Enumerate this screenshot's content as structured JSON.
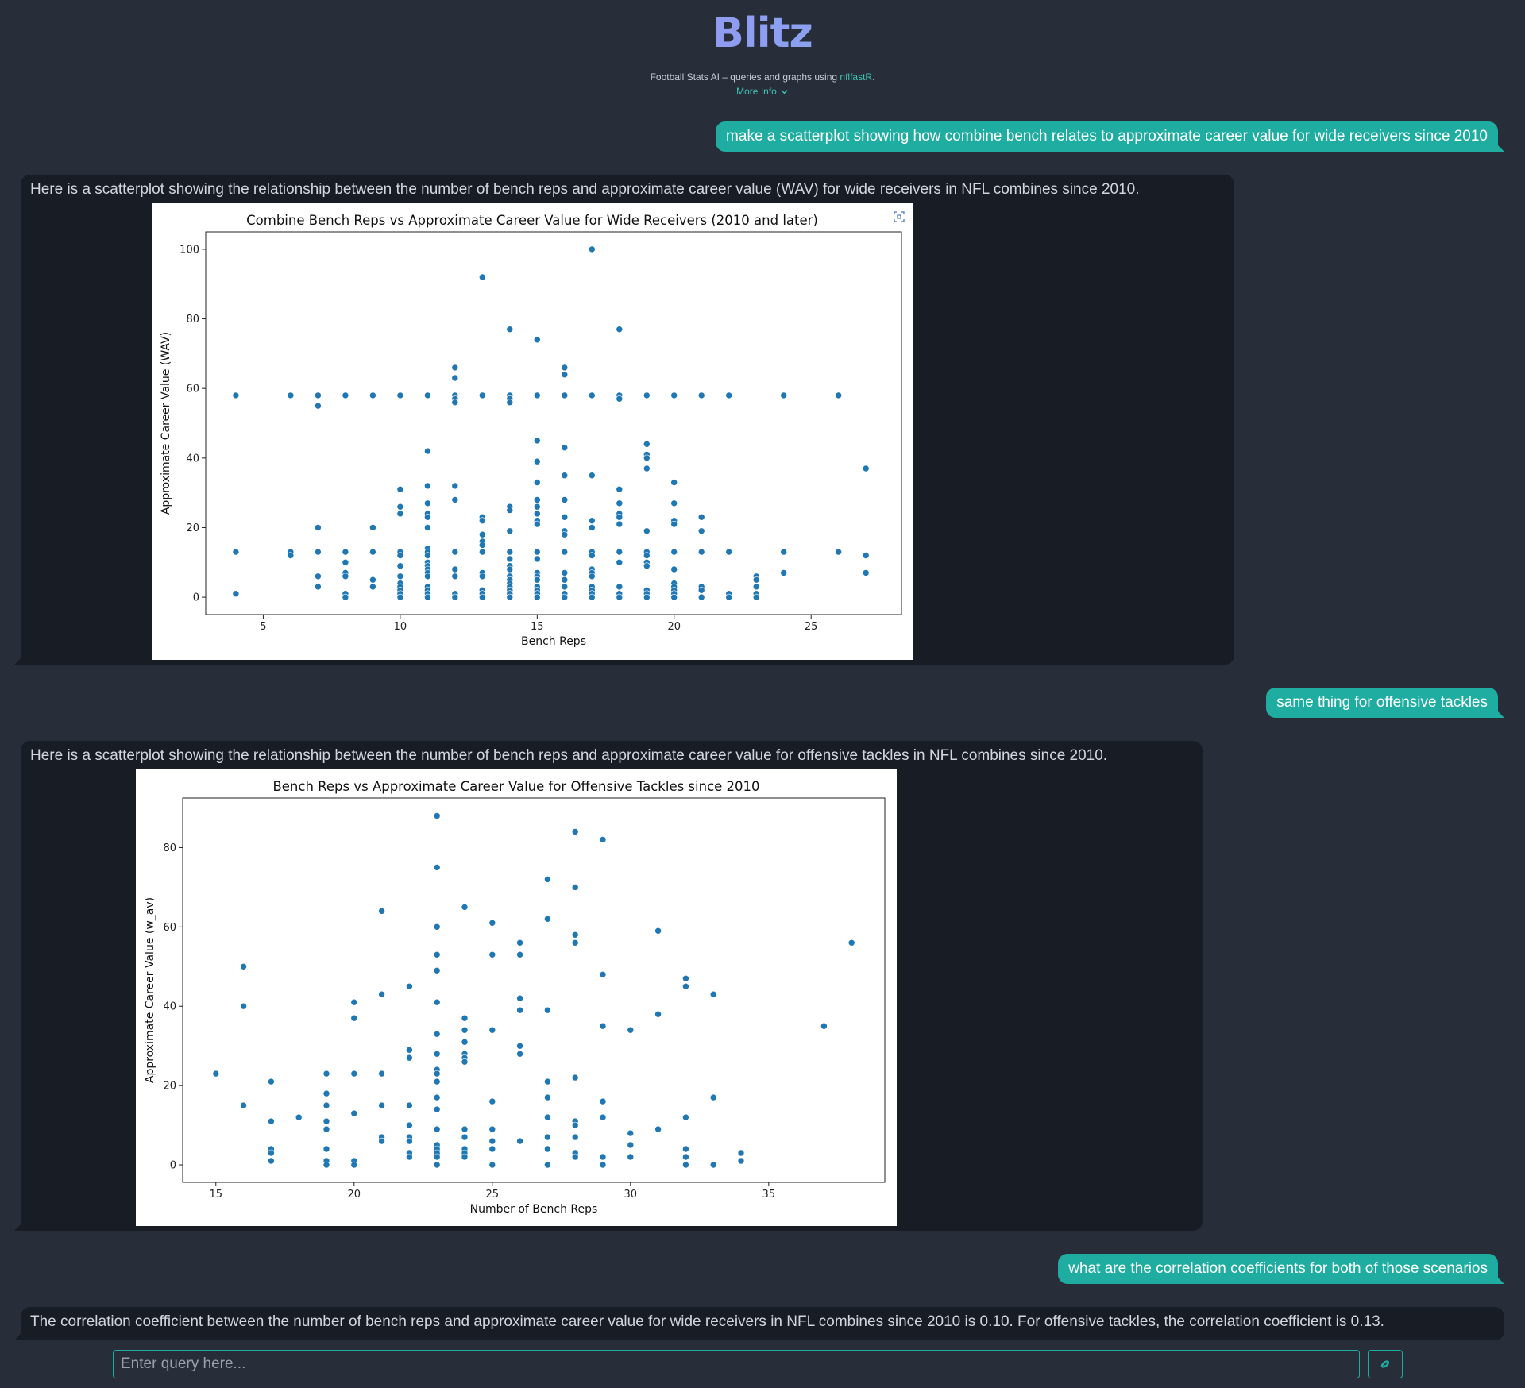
{
  "header": {
    "logo": "Blitz",
    "tagline_prefix": "Football Stats AI – queries and graphs using ",
    "tagline_link": "nflfastR",
    "tagline_suffix": ".",
    "more_info": "More Info"
  },
  "messages": {
    "q1": "make a scatterplot showing how combine bench relates to approximate career value for wide receivers since 2010",
    "a1": "Here is a scatterplot showing the relationship between the number of bench reps and approximate career value (WAV) for wide receivers in NFL combines since 2010.",
    "q2": "same thing for offensive tackles",
    "a2": "Here is a scatterplot showing the relationship between the number of bench reps and approximate career value for offensive tackles in NFL combines since 2010.",
    "q3": "what are the correlation coefficients for both of those scenarios",
    "a3": "The correlation coefficient between the number of bench reps and approximate career value for wide receivers in NFL combines since 2010 is 0.10. For offensive tackles, the correlation coefficient is 0.13."
  },
  "input": {
    "placeholder": "Enter query here..."
  },
  "colors": {
    "accent": "#1eada0",
    "marker": "#1f77b4",
    "background": "#282d3a",
    "ai_bubble": "#181c24"
  },
  "icons": {
    "expand": "expand-icon",
    "send": "football-icon",
    "chevron": "chevron-down-icon"
  },
  "chart_data": [
    {
      "type": "scatter",
      "title": "Combine Bench Reps vs Approximate Career Value for Wide Receivers (2010 and later)",
      "xlabel": "Bench Reps",
      "ylabel": "Approximate Career Value (WAV)",
      "xlim": [
        2.9,
        28.3
      ],
      "ylim": [
        -5,
        105
      ],
      "xticks": [
        5,
        10,
        15,
        20,
        25
      ],
      "yticks": [
        0,
        20,
        40,
        60,
        80,
        100
      ],
      "points": [
        [
          4,
          58
        ],
        [
          4,
          13
        ],
        [
          4,
          1
        ],
        [
          6,
          58
        ],
        [
          6,
          13
        ],
        [
          6,
          12
        ],
        [
          7,
          58
        ],
        [
          7,
          55
        ],
        [
          7,
          20
        ],
        [
          7,
          13
        ],
        [
          7,
          6
        ],
        [
          7,
          3
        ],
        [
          8,
          58
        ],
        [
          8,
          13
        ],
        [
          8,
          10
        ],
        [
          8,
          7
        ],
        [
          8,
          6
        ],
        [
          8,
          1
        ],
        [
          8,
          0
        ],
        [
          9,
          58
        ],
        [
          9,
          20
        ],
        [
          9,
          13
        ],
        [
          9,
          5
        ],
        [
          9,
          3
        ],
        [
          10,
          58
        ],
        [
          10,
          31
        ],
        [
          10,
          26
        ],
        [
          10,
          24
        ],
        [
          10,
          13
        ],
        [
          10,
          12
        ],
        [
          10,
          9
        ],
        [
          10,
          6
        ],
        [
          10,
          4
        ],
        [
          10,
          3
        ],
        [
          10,
          2
        ],
        [
          10,
          1
        ],
        [
          10,
          0
        ],
        [
          11,
          58
        ],
        [
          11,
          42
        ],
        [
          11,
          32
        ],
        [
          11,
          27
        ],
        [
          11,
          24
        ],
        [
          11,
          23
        ],
        [
          11,
          20
        ],
        [
          11,
          14
        ],
        [
          11,
          13
        ],
        [
          11,
          12
        ],
        [
          11,
          10
        ],
        [
          11,
          9
        ],
        [
          11,
          8
        ],
        [
          11,
          7
        ],
        [
          11,
          6
        ],
        [
          11,
          3
        ],
        [
          11,
          2
        ],
        [
          11,
          1
        ],
        [
          11,
          0
        ],
        [
          12,
          66
        ],
        [
          12,
          63
        ],
        [
          12,
          58
        ],
        [
          12,
          57
        ],
        [
          12,
          56
        ],
        [
          12,
          32
        ],
        [
          12,
          28
        ],
        [
          12,
          13
        ],
        [
          12,
          8
        ],
        [
          12,
          6
        ],
        [
          12,
          1
        ],
        [
          12,
          0
        ],
        [
          13,
          92
        ],
        [
          13,
          58
        ],
        [
          13,
          23
        ],
        [
          13,
          22
        ],
        [
          13,
          18
        ],
        [
          13,
          16
        ],
        [
          13,
          15
        ],
        [
          13,
          13
        ],
        [
          13,
          7
        ],
        [
          13,
          6
        ],
        [
          13,
          2
        ],
        [
          13,
          1
        ],
        [
          13,
          0
        ],
        [
          14,
          77
        ],
        [
          14,
          58
        ],
        [
          14,
          57
        ],
        [
          14,
          56
        ],
        [
          14,
          26
        ],
        [
          14,
          25
        ],
        [
          14,
          19
        ],
        [
          14,
          13
        ],
        [
          14,
          11
        ],
        [
          14,
          9
        ],
        [
          14,
          8
        ],
        [
          14,
          6
        ],
        [
          14,
          5
        ],
        [
          14,
          4
        ],
        [
          14,
          3
        ],
        [
          14,
          2
        ],
        [
          14,
          1
        ],
        [
          14,
          0
        ],
        [
          15,
          74
        ],
        [
          15,
          58
        ],
        [
          15,
          45
        ],
        [
          15,
          39
        ],
        [
          15,
          33
        ],
        [
          15,
          28
        ],
        [
          15,
          26
        ],
        [
          15,
          24
        ],
        [
          15,
          22
        ],
        [
          15,
          21
        ],
        [
          15,
          13
        ],
        [
          15,
          11
        ],
        [
          15,
          7
        ],
        [
          15,
          6
        ],
        [
          15,
          5
        ],
        [
          15,
          3
        ],
        [
          15,
          2
        ],
        [
          15,
          1
        ],
        [
          15,
          0
        ],
        [
          16,
          66
        ],
        [
          16,
          64
        ],
        [
          16,
          58
        ],
        [
          16,
          43
        ],
        [
          16,
          35
        ],
        [
          16,
          28
        ],
        [
          16,
          23
        ],
        [
          16,
          19
        ],
        [
          16,
          18
        ],
        [
          16,
          13
        ],
        [
          16,
          7
        ],
        [
          16,
          5
        ],
        [
          16,
          3
        ],
        [
          16,
          1
        ],
        [
          16,
          0
        ],
        [
          17,
          100
        ],
        [
          17,
          58
        ],
        [
          17,
          35
        ],
        [
          17,
          22
        ],
        [
          17,
          20
        ],
        [
          17,
          13
        ],
        [
          17,
          12
        ],
        [
          17,
          8
        ],
        [
          17,
          7
        ],
        [
          17,
          6
        ],
        [
          17,
          3
        ],
        [
          17,
          2
        ],
        [
          17,
          1
        ],
        [
          17,
          0
        ],
        [
          18,
          77
        ],
        [
          18,
          58
        ],
        [
          18,
          57
        ],
        [
          18,
          31
        ],
        [
          18,
          27
        ],
        [
          18,
          24
        ],
        [
          18,
          23
        ],
        [
          18,
          21
        ],
        [
          18,
          13
        ],
        [
          18,
          10
        ],
        [
          18,
          3
        ],
        [
          18,
          1
        ],
        [
          18,
          0
        ],
        [
          19,
          58
        ],
        [
          19,
          44
        ],
        [
          19,
          41
        ],
        [
          19,
          40
        ],
        [
          19,
          37
        ],
        [
          19,
          19
        ],
        [
          19,
          13
        ],
        [
          19,
          12
        ],
        [
          19,
          10
        ],
        [
          19,
          9
        ],
        [
          19,
          2
        ],
        [
          19,
          1
        ],
        [
          19,
          0
        ],
        [
          20,
          58
        ],
        [
          20,
          33
        ],
        [
          20,
          27
        ],
        [
          20,
          22
        ],
        [
          20,
          21
        ],
        [
          20,
          13
        ],
        [
          20,
          8
        ],
        [
          20,
          4
        ],
        [
          20,
          3
        ],
        [
          20,
          2
        ],
        [
          20,
          1
        ],
        [
          20,
          0
        ],
        [
          21,
          58
        ],
        [
          21,
          23
        ],
        [
          21,
          19
        ],
        [
          21,
          13
        ],
        [
          21,
          3
        ],
        [
          21,
          2
        ],
        [
          21,
          0
        ],
        [
          22,
          58
        ],
        [
          22,
          13
        ],
        [
          22,
          1
        ],
        [
          22,
          0
        ],
        [
          23,
          6
        ],
        [
          23,
          5
        ],
        [
          23,
          3
        ],
        [
          23,
          1
        ],
        [
          23,
          0
        ],
        [
          24,
          58
        ],
        [
          24,
          13
        ],
        [
          24,
          7
        ],
        [
          26,
          58
        ],
        [
          26,
          13
        ],
        [
          27,
          37
        ],
        [
          27,
          12
        ],
        [
          27,
          7
        ]
      ]
    },
    {
      "type": "scatter",
      "title": "Bench Reps vs Approximate Career Value for Offensive Tackles since 2010",
      "xlabel": "Number of Bench Reps",
      "ylabel": "Approximate Career Value (w_av)",
      "xlim": [
        13.8,
        39.2
      ],
      "ylim": [
        -4.4,
        92.5
      ],
      "xticks": [
        15,
        20,
        25,
        30,
        35
      ],
      "yticks": [
        0,
        20,
        40,
        60,
        80
      ],
      "points": [
        [
          15,
          23
        ],
        [
          16,
          50
        ],
        [
          16,
          40
        ],
        [
          16,
          15
        ],
        [
          17,
          21
        ],
        [
          17,
          11
        ],
        [
          17,
          4
        ],
        [
          17,
          3
        ],
        [
          17,
          1
        ],
        [
          18,
          12
        ],
        [
          19,
          23
        ],
        [
          19,
          18
        ],
        [
          19,
          15
        ],
        [
          19,
          11
        ],
        [
          19,
          9
        ],
        [
          19,
          4
        ],
        [
          19,
          1
        ],
        [
          19,
          0
        ],
        [
          20,
          41
        ],
        [
          20,
          37
        ],
        [
          20,
          23
        ],
        [
          20,
          13
        ],
        [
          20,
          1
        ],
        [
          20,
          0
        ],
        [
          21,
          64
        ],
        [
          21,
          43
        ],
        [
          21,
          23
        ],
        [
          21,
          15
        ],
        [
          21,
          7
        ],
        [
          21,
          6
        ],
        [
          22,
          45
        ],
        [
          22,
          29
        ],
        [
          22,
          27
        ],
        [
          22,
          15
        ],
        [
          22,
          10
        ],
        [
          22,
          7
        ],
        [
          22,
          6
        ],
        [
          22,
          3
        ],
        [
          22,
          2
        ],
        [
          23,
          88
        ],
        [
          23,
          75
        ],
        [
          23,
          60
        ],
        [
          23,
          53
        ],
        [
          23,
          49
        ],
        [
          23,
          41
        ],
        [
          23,
          33
        ],
        [
          23,
          28
        ],
        [
          23,
          24
        ],
        [
          23,
          23
        ],
        [
          23,
          21
        ],
        [
          23,
          17
        ],
        [
          23,
          14
        ],
        [
          23,
          9
        ],
        [
          23,
          5
        ],
        [
          23,
          4
        ],
        [
          23,
          3
        ],
        [
          23,
          2
        ],
        [
          23,
          0
        ],
        [
          24,
          65
        ],
        [
          24,
          37
        ],
        [
          24,
          34
        ],
        [
          24,
          31
        ],
        [
          24,
          28
        ],
        [
          24,
          27
        ],
        [
          24,
          26
        ],
        [
          24,
          9
        ],
        [
          24,
          7
        ],
        [
          24,
          4
        ],
        [
          24,
          3
        ],
        [
          24,
          2
        ],
        [
          25,
          61
        ],
        [
          25,
          53
        ],
        [
          25,
          34
        ],
        [
          25,
          16
        ],
        [
          25,
          9
        ],
        [
          25,
          6
        ],
        [
          25,
          4
        ],
        [
          25,
          0
        ],
        [
          26,
          56
        ],
        [
          26,
          53
        ],
        [
          26,
          42
        ],
        [
          26,
          39
        ],
        [
          26,
          30
        ],
        [
          26,
          28
        ],
        [
          26,
          6
        ],
        [
          27,
          72
        ],
        [
          27,
          62
        ],
        [
          27,
          39
        ],
        [
          27,
          21
        ],
        [
          27,
          17
        ],
        [
          27,
          12
        ],
        [
          27,
          7
        ],
        [
          27,
          4
        ],
        [
          27,
          0
        ],
        [
          28,
          84
        ],
        [
          28,
          70
        ],
        [
          28,
          58
        ],
        [
          28,
          56
        ],
        [
          28,
          22
        ],
        [
          28,
          11
        ],
        [
          28,
          10
        ],
        [
          28,
          7
        ],
        [
          28,
          3
        ],
        [
          28,
          2
        ],
        [
          29,
          82
        ],
        [
          29,
          48
        ],
        [
          29,
          35
        ],
        [
          29,
          16
        ],
        [
          29,
          12
        ],
        [
          29,
          2
        ],
        [
          29,
          0
        ],
        [
          30,
          34
        ],
        [
          30,
          8
        ],
        [
          30,
          5
        ],
        [
          30,
          2
        ],
        [
          31,
          59
        ],
        [
          31,
          38
        ],
        [
          31,
          9
        ],
        [
          32,
          47
        ],
        [
          32,
          45
        ],
        [
          32,
          12
        ],
        [
          32,
          4
        ],
        [
          32,
          2
        ],
        [
          32,
          0
        ],
        [
          33,
          43
        ],
        [
          33,
          17
        ],
        [
          33,
          0
        ],
        [
          34,
          3
        ],
        [
          34,
          1
        ],
        [
          37,
          35
        ],
        [
          38,
          56
        ]
      ]
    }
  ]
}
